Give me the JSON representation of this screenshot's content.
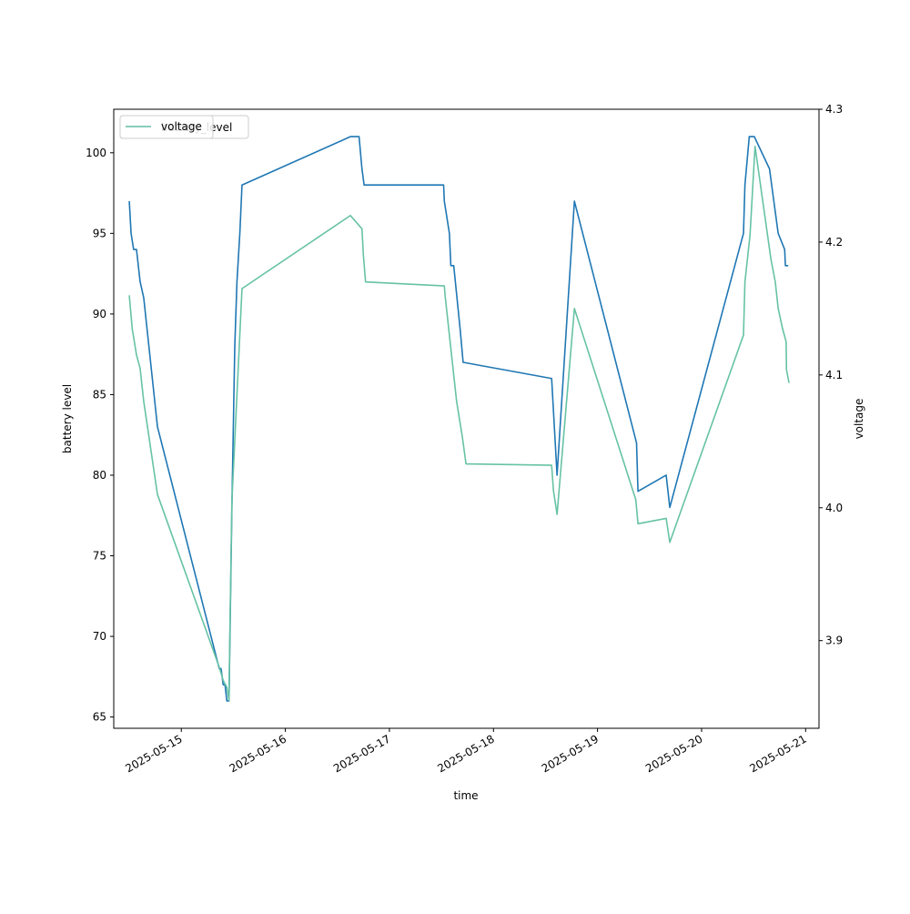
{
  "chart_data": {
    "type": "line",
    "title": "",
    "xlabel": "time",
    "ylabel_left": "battery level",
    "ylabel_right": "voltage",
    "x_ticks": [
      "2025-05-15",
      "2025-05-16",
      "2025-05-17",
      "2025-05-18",
      "2025-05-19",
      "2025-05-20",
      "2025-05-21"
    ],
    "x_range": [
      "2025-05-14T08:25",
      "2025-05-21T03:05"
    ],
    "y_left_ticks": [
      65,
      70,
      75,
      80,
      85,
      90,
      95,
      100
    ],
    "y_left_range": [
      64.3,
      102.7
    ],
    "y_right_ticks": [
      "3.9",
      "4.0",
      "4.1",
      "4.2",
      "4.3"
    ],
    "y_right_range": [
      3.834,
      4.3
    ],
    "grid": false,
    "legend": {
      "placement": "upper-left",
      "entries": [
        {
          "label": "battery_level",
          "color": "#1f77b4"
        },
        {
          "label": "voltage",
          "color": "#66c2a5"
        }
      ]
    },
    "series": [
      {
        "name": "battery_level",
        "axis": "left",
        "color": "#1f77b4",
        "points": [
          [
            "2025-05-14T12:00",
            97
          ],
          [
            "2025-05-14T12:25",
            95
          ],
          [
            "2025-05-14T13:00",
            94
          ],
          [
            "2025-05-14T13:40",
            94
          ],
          [
            "2025-05-14T14:30",
            92
          ],
          [
            "2025-05-14T15:20",
            91
          ],
          [
            "2025-05-14T18:30",
            83
          ],
          [
            "2025-05-15T08:45",
            68
          ],
          [
            "2025-05-15T09:10",
            68
          ],
          [
            "2025-05-15T09:40",
            67
          ],
          [
            "2025-05-15T10:05",
            67
          ],
          [
            "2025-05-15T10:30",
            66
          ],
          [
            "2025-05-15T11:00",
            66
          ],
          [
            "2025-05-15T11:40",
            78
          ],
          [
            "2025-05-15T12:20",
            88
          ],
          [
            "2025-05-15T12:50",
            92
          ],
          [
            "2025-05-15T13:30",
            95
          ],
          [
            "2025-05-15T14:00",
            98
          ],
          [
            "2025-05-16T15:00",
            101
          ],
          [
            "2025-05-16T17:00",
            101
          ],
          [
            "2025-05-16T17:40",
            99
          ],
          [
            "2025-05-16T18:10",
            98
          ],
          [
            "2025-05-17T12:30",
            98
          ],
          [
            "2025-05-17T12:40",
            97
          ],
          [
            "2025-05-17T13:50",
            95
          ],
          [
            "2025-05-17T14:10",
            93
          ],
          [
            "2025-05-17T14:50",
            93
          ],
          [
            "2025-05-17T16:20",
            89
          ],
          [
            "2025-05-17T17:00",
            87
          ],
          [
            "2025-05-18T13:25",
            86
          ],
          [
            "2025-05-18T14:40",
            80
          ],
          [
            "2025-05-18T18:40",
            97
          ],
          [
            "2025-05-19T09:00",
            82
          ],
          [
            "2025-05-19T09:20",
            79
          ],
          [
            "2025-05-19T15:50",
            80
          ],
          [
            "2025-05-19T16:40",
            78
          ],
          [
            "2025-05-20T09:40",
            95
          ],
          [
            "2025-05-20T10:00",
            98
          ],
          [
            "2025-05-20T11:00",
            101
          ],
          [
            "2025-05-20T12:10",
            101
          ],
          [
            "2025-05-20T15:40",
            99
          ],
          [
            "2025-05-20T16:40",
            97
          ],
          [
            "2025-05-20T17:40",
            95
          ],
          [
            "2025-05-20T19:10",
            94
          ],
          [
            "2025-05-20T19:20",
            93
          ],
          [
            "2025-05-20T20:00",
            93
          ]
        ]
      },
      {
        "name": "voltage",
        "axis": "right",
        "color": "#66c2a5",
        "points": [
          [
            "2025-05-14T12:00",
            4.16
          ],
          [
            "2025-05-14T12:40",
            4.135
          ],
          [
            "2025-05-14T13:40",
            4.115
          ],
          [
            "2025-05-14T14:30",
            4.105
          ],
          [
            "2025-05-14T15:20",
            4.08
          ],
          [
            "2025-05-14T18:30",
            4.01
          ],
          [
            "2025-05-15T08:45",
            3.88
          ],
          [
            "2025-05-15T09:40",
            3.87
          ],
          [
            "2025-05-15T10:30",
            3.865
          ],
          [
            "2025-05-15T11:00",
            3.855
          ],
          [
            "2025-05-15T11:10",
            3.9
          ],
          [
            "2025-05-15T11:40",
            4.005
          ],
          [
            "2025-05-15T14:00",
            4.165
          ],
          [
            "2025-05-16T15:00",
            4.22
          ],
          [
            "2025-05-16T17:40",
            4.21
          ],
          [
            "2025-05-16T18:00",
            4.19
          ],
          [
            "2025-05-16T18:30",
            4.17
          ],
          [
            "2025-05-17T12:40",
            4.167
          ],
          [
            "2025-05-17T12:50",
            4.16
          ],
          [
            "2025-05-17T14:00",
            4.125
          ],
          [
            "2025-05-17T14:40",
            4.105
          ],
          [
            "2025-05-17T15:30",
            4.08
          ],
          [
            "2025-05-17T16:50",
            4.053
          ],
          [
            "2025-05-17T17:40",
            4.033
          ],
          [
            "2025-05-18T13:25",
            4.032
          ],
          [
            "2025-05-18T13:50",
            4.013
          ],
          [
            "2025-05-18T14:40",
            3.995
          ],
          [
            "2025-05-18T18:40",
            4.15
          ],
          [
            "2025-05-19T08:50",
            4.006
          ],
          [
            "2025-05-19T09:20",
            3.988
          ],
          [
            "2025-05-19T15:50",
            3.992
          ],
          [
            "2025-05-19T16:40",
            3.974
          ],
          [
            "2025-05-20T09:40",
            4.13
          ],
          [
            "2025-05-20T10:00",
            4.17
          ],
          [
            "2025-05-20T11:10",
            4.205
          ],
          [
            "2025-05-20T12:20",
            4.272
          ],
          [
            "2025-05-20T16:00",
            4.187
          ],
          [
            "2025-05-20T17:00",
            4.17
          ],
          [
            "2025-05-20T17:40",
            4.15
          ],
          [
            "2025-05-20T18:40",
            4.135
          ],
          [
            "2025-05-20T19:30",
            4.125
          ],
          [
            "2025-05-20T19:35",
            4.104
          ],
          [
            "2025-05-20T20:10",
            4.094
          ]
        ]
      }
    ]
  }
}
